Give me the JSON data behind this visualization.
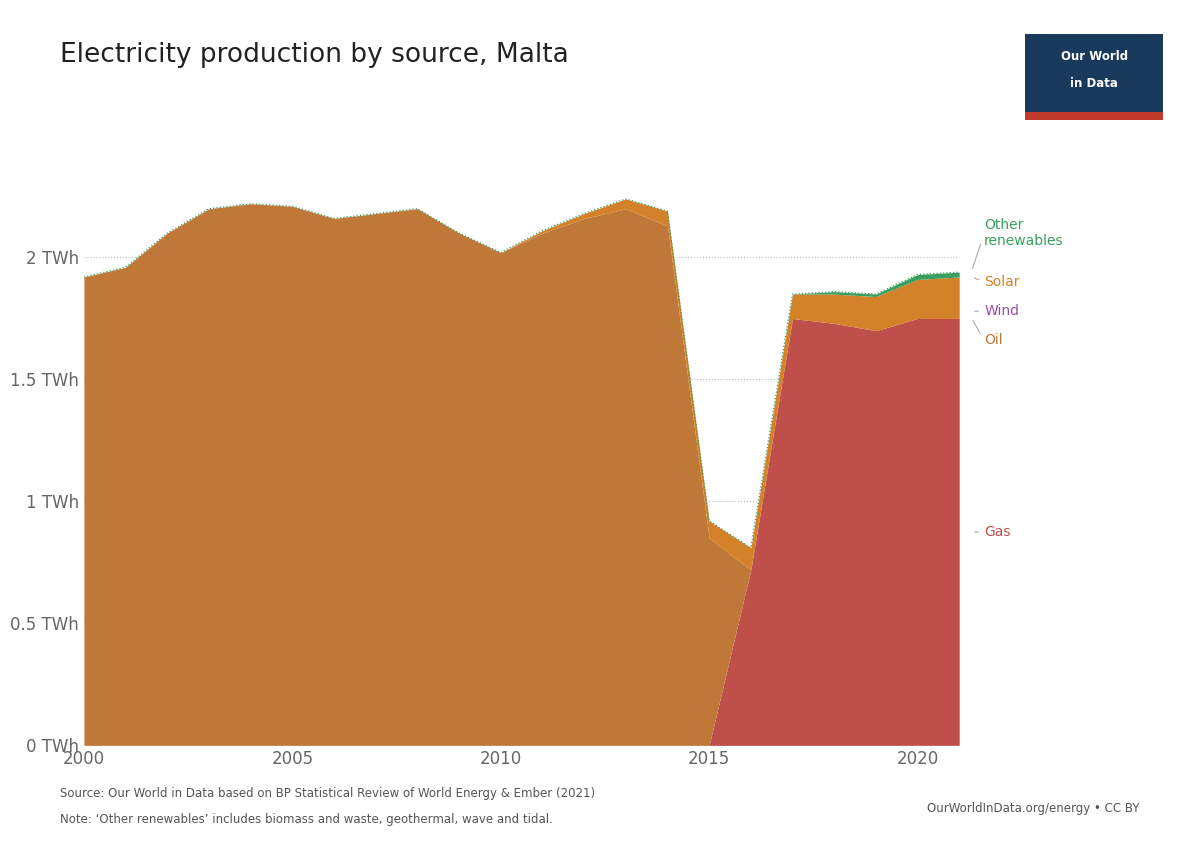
{
  "title": "Electricity production by source, Malta",
  "years": [
    2000,
    2001,
    2002,
    2003,
    2004,
    2005,
    2006,
    2007,
    2008,
    2009,
    2010,
    2011,
    2012,
    2013,
    2014,
    2015,
    2016,
    2017,
    2018,
    2019,
    2020,
    2021
  ],
  "oil": [
    1.92,
    1.96,
    2.1,
    2.2,
    2.22,
    2.21,
    2.16,
    2.18,
    2.2,
    2.1,
    2.02,
    2.1,
    2.16,
    2.2,
    2.13,
    0.85,
    0.0,
    0.0,
    0.0,
    0.0,
    0.0,
    0.0
  ],
  "gas": [
    0.0,
    0.0,
    0.0,
    0.0,
    0.0,
    0.0,
    0.0,
    0.0,
    0.0,
    0.0,
    0.0,
    0.0,
    0.0,
    0.0,
    0.0,
    0.0,
    0.72,
    1.75,
    1.73,
    1.7,
    1.75,
    1.75
  ],
  "wind": [
    0.0,
    0.0,
    0.0,
    0.0,
    0.0,
    0.0,
    0.0,
    0.0,
    0.0,
    0.0,
    0.0,
    0.0,
    0.0,
    0.0,
    0.0,
    0.0,
    0.0,
    0.0,
    0.0,
    0.0,
    0.0,
    0.0
  ],
  "solar": [
    0.0,
    0.0,
    0.0,
    0.0,
    0.0,
    0.0,
    0.0,
    0.0,
    0.0,
    0.0,
    0.0,
    0.01,
    0.02,
    0.04,
    0.06,
    0.07,
    0.09,
    0.1,
    0.12,
    0.14,
    0.16,
    0.17
  ],
  "other_renewables": [
    0.0,
    0.0,
    0.0,
    0.0,
    0.0,
    0.0,
    0.0,
    0.0,
    0.0,
    0.0,
    0.0,
    0.0,
    0.0,
    0.0,
    0.0,
    0.0,
    0.0,
    0.0,
    0.01,
    0.01,
    0.02,
    0.02
  ],
  "oil_color": "#c07838",
  "gas_color": "#bf4f4a",
  "wind_color": "#984ea3",
  "solar_color": "#d4822a",
  "other_renewables_color": "#3a9e5f",
  "outline_color": "#3a9e5f",
  "background_color": "#ffffff",
  "ylim": [
    0,
    2.5
  ],
  "xlim": [
    2000,
    2021
  ],
  "yticks": [
    0,
    0.5,
    1.0,
    1.5,
    2.0
  ],
  "ytick_labels": [
    "0 TWh",
    "0.5 TWh",
    "1 TWh",
    "1.5 TWh",
    "2 TWh"
  ],
  "xticks": [
    2000,
    2005,
    2010,
    2015,
    2020
  ],
  "source_text": "Source: Our World in Data based on BP Statistical Review of World Energy & Ember (2021)",
  "note_text": "Note: ‘Other renewables’ includes biomass and waste, geothermal, wave and tidal.",
  "url_text": "OurWorldInData.org/energy • CC BY"
}
